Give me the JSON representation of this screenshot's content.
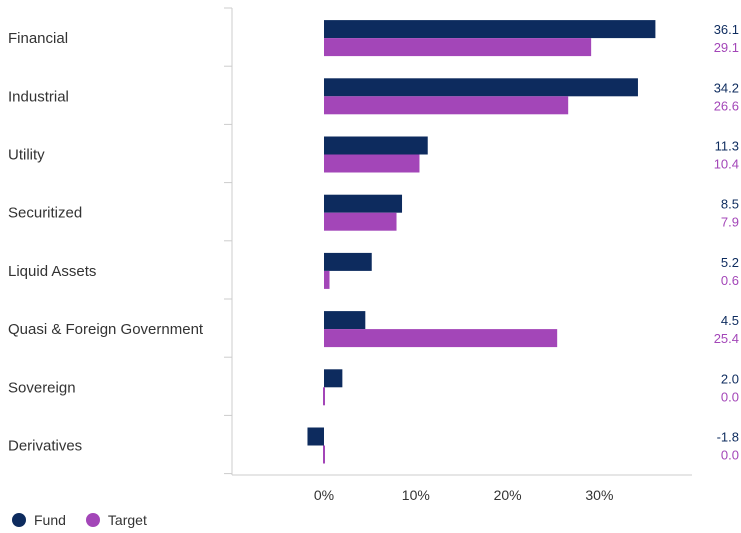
{
  "chart_data": {
    "type": "bar",
    "orientation": "horizontal",
    "categories": [
      "Financial",
      "Industrial",
      "Utility",
      "Securitized",
      "Liquid Assets",
      "Quasi & Foreign Government",
      "Sovereign",
      "Derivatives"
    ],
    "series": [
      {
        "name": "Fund",
        "color": "#0d2b5e",
        "values": [
          36.1,
          34.2,
          11.3,
          8.5,
          5.2,
          4.5,
          2.0,
          -1.8
        ],
        "labels": [
          "36.1",
          "34.2",
          "11.3",
          "8.5",
          "5.2",
          "4.5",
          "2.0",
          "-1.8"
        ]
      },
      {
        "name": "Target",
        "color": "#a346b8",
        "values": [
          29.1,
          26.6,
          10.4,
          7.9,
          0.6,
          25.4,
          0.0,
          0.0
        ],
        "labels": [
          "29.1",
          "26.6",
          "10.4",
          "7.9",
          "0.6",
          "25.4",
          "0.0",
          "0.0"
        ]
      }
    ],
    "xticks": [
      0,
      10,
      20,
      30
    ],
    "xtick_labels": [
      "0%",
      "10%",
      "20%",
      "30%"
    ],
    "xlim": [
      -10,
      40
    ],
    "legend_position": "bottom-left",
    "grid": false
  }
}
